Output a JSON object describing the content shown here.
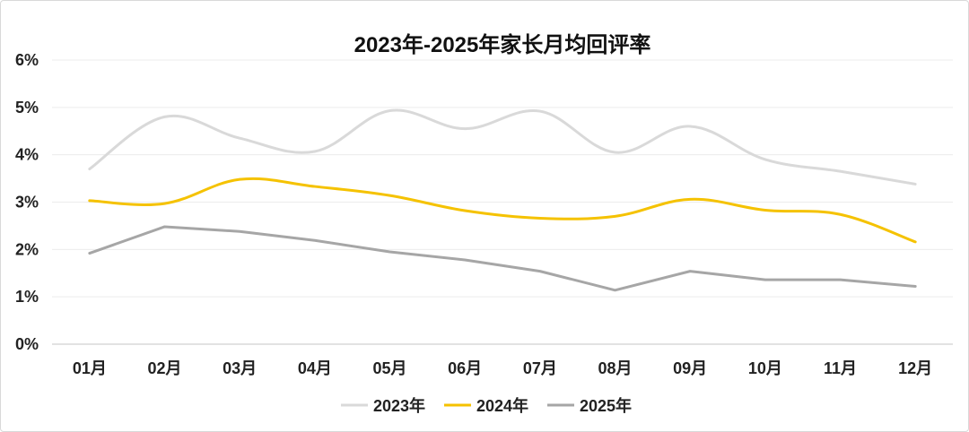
{
  "chart_data": {
    "type": "line",
    "title": "2023年-2025年家长月均回评率",
    "categories": [
      "01月",
      "02月",
      "03月",
      "04月",
      "05月",
      "06月",
      "07月",
      "08月",
      "09月",
      "10月",
      "11月",
      "12月"
    ],
    "y_ticks": [
      "0%",
      "1%",
      "2%",
      "3%",
      "4%",
      "5%",
      "6%"
    ],
    "ylim": [
      0,
      6
    ],
    "unit": "%",
    "grid": true,
    "legend_position": "bottom",
    "series": [
      {
        "name": "2023年",
        "color": "#d9d9d9",
        "smooth": true,
        "values": [
          3.7,
          4.8,
          4.35,
          4.07,
          4.93,
          4.55,
          4.92,
          4.05,
          4.6,
          3.9,
          3.65,
          3.38
        ]
      },
      {
        "name": "2024年",
        "color": "#f5c200",
        "smooth": true,
        "values": [
          3.03,
          2.97,
          3.48,
          3.33,
          3.14,
          2.82,
          2.66,
          2.7,
          3.06,
          2.83,
          2.74,
          2.16
        ]
      },
      {
        "name": "2025年",
        "color": "#a6a6a6",
        "smooth": false,
        "values": [
          1.92,
          2.48,
          2.38,
          2.19,
          1.95,
          1.78,
          1.54,
          1.14,
          1.54,
          1.36,
          1.36,
          1.22
        ]
      }
    ]
  }
}
